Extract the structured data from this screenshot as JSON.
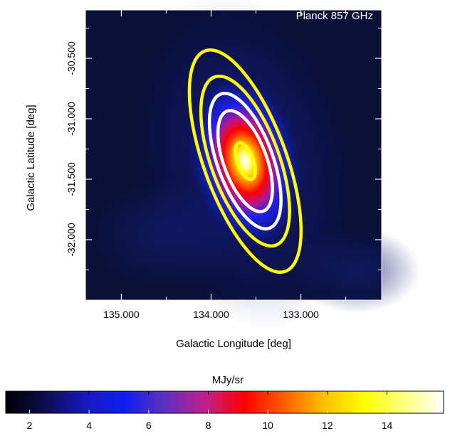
{
  "chart_data": {
    "type": "heatmap",
    "title": "",
    "map_label": "Planck 857 GHz",
    "xlabel": "Galactic Longitude [deg]",
    "ylabel": "Galactic Latitude [deg]",
    "x_tick_labels": [
      "135.000",
      "134.000",
      "133.000"
    ],
    "x_ticks": [
      135.0,
      134.0,
      133.0
    ],
    "x_minor_ticks": [
      134.5,
      133.5,
      132.5
    ],
    "y_tick_labels": [
      "-30.500",
      "-31.000",
      "-31.500",
      "-32.000"
    ],
    "y_ticks": [
      -30.5,
      -31.0,
      -31.5,
      -32.0
    ],
    "y_minor_ticks": [
      -30.25,
      -30.75,
      -31.25,
      -31.75,
      -32.25
    ],
    "xlim": [
      135.4,
      132.1
    ],
    "ylim": [
      -32.5,
      -30.1
    ],
    "x_axis_reversed": true,
    "source": {
      "l": 133.62,
      "b": -31.35
    },
    "contours": [
      {
        "color": "#ffff00",
        "semi_major_deg": 0.97,
        "semi_minor_deg": 0.46,
        "position_angle_deg": -20
      },
      {
        "color": "#ffff00",
        "semi_major_deg": 0.74,
        "semi_minor_deg": 0.38,
        "position_angle_deg": -20
      },
      {
        "color": "#ffffff",
        "semi_major_deg": 0.59,
        "semi_minor_deg": 0.31,
        "position_angle_deg": -20
      },
      {
        "color": "#ffffff",
        "semi_major_deg": 0.44,
        "semi_minor_deg": 0.24,
        "position_angle_deg": -20
      },
      {
        "color": "#ffff00",
        "semi_major_deg": 0.16,
        "semi_minor_deg": 0.09,
        "position_angle_deg": -20
      }
    ],
    "colorbar": {
      "label": "MJy/sr",
      "range": [
        1.2,
        15.9
      ],
      "tick_values": [
        2,
        4,
        6,
        8,
        10,
        12,
        14
      ],
      "tick_labels": [
        "2",
        "4",
        "6",
        "8",
        "10",
        "12",
        "14"
      ],
      "colors": [
        "#000000",
        "#0d0d50",
        "#1818c0",
        "#0f1ff0",
        "#6030c0",
        "#c0208a",
        "#ff0000",
        "#ff6000",
        "#ffc000",
        "#ffff00",
        "#ffff80",
        "#ffffff"
      ]
    },
    "grid": false
  }
}
